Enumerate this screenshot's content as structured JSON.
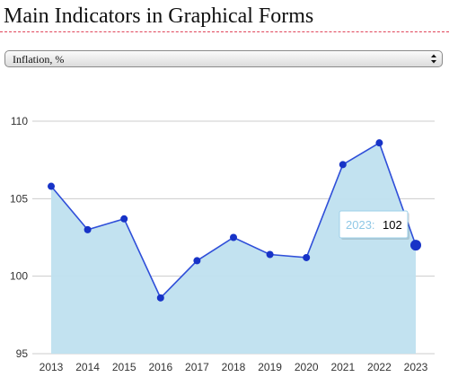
{
  "page": {
    "title": "Main Indicators in Graphical Forms"
  },
  "indicator_select": {
    "selected": "Inflation, %",
    "arrow_icon": "up-down-chevron-icon"
  },
  "colors": {
    "line": "#2f4fd9",
    "point": "#1733c7",
    "area": "#bfe0ef",
    "grid": "#cccccc",
    "tooltip_border": "#9dd0ea"
  },
  "chart_data": {
    "type": "area",
    "x": [
      "2013",
      "2014",
      "2015",
      "2016",
      "2017",
      "2018",
      "2019",
      "2020",
      "2021",
      "2022",
      "2023"
    ],
    "series": [
      {
        "values": [
          105.8,
          103.0,
          103.7,
          98.6,
          101.0,
          102.5,
          101.4,
          101.2,
          107.2,
          108.6,
          102
        ]
      }
    ],
    "ylim": [
      95,
      110
    ],
    "yticks": [
      95,
      100,
      105,
      110
    ],
    "grid": true,
    "legend": "none",
    "tooltip": {
      "category": "2023:",
      "value": "102"
    }
  }
}
